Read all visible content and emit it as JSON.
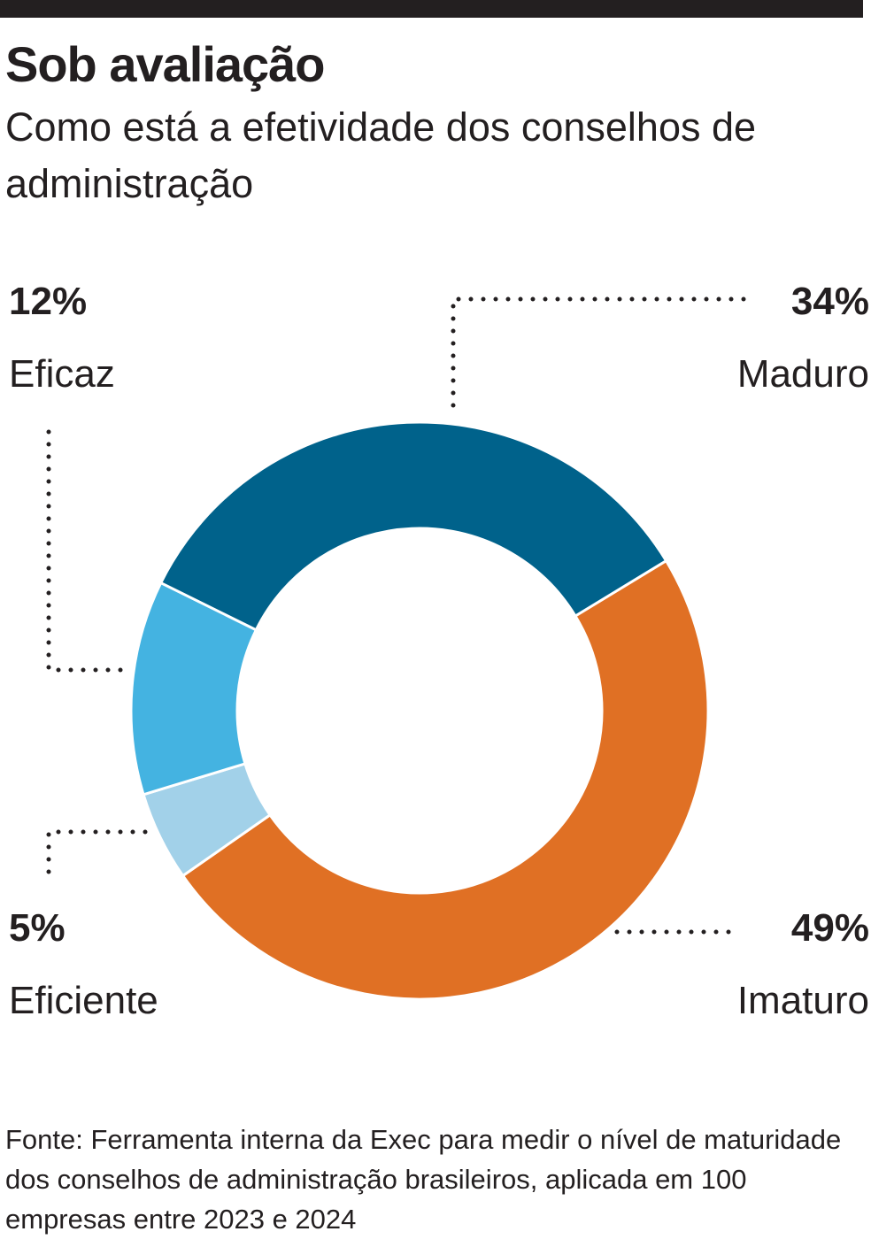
{
  "header": {
    "title": "Sob avaliação",
    "subtitle": "Como está a efetividade dos conselhos de administração"
  },
  "chart_data": {
    "type": "pie",
    "variant": "donut",
    "title": "Sob avaliação",
    "subtitle": "Como está a efetividade dos conselhos de administração",
    "slices": [
      {
        "label": "Imaturo",
        "value": 49,
        "display": "49%",
        "color": "#e07024"
      },
      {
        "label": "Eficiente",
        "value": 5,
        "display": "5%",
        "color": "#a2d1e9"
      },
      {
        "label": "Eficaz",
        "value": 12,
        "display": "12%",
        "color": "#44b3e1"
      },
      {
        "label": "Maduro",
        "value": 34,
        "display": "34%",
        "color": "#00628b"
      }
    ]
  },
  "footer": {
    "source": "Fonte: Ferramenta interna da Exec para medir o nível de maturidade dos conselhos de administração brasileiros, aplicada em 100 empresas entre 2023 e 2024"
  }
}
